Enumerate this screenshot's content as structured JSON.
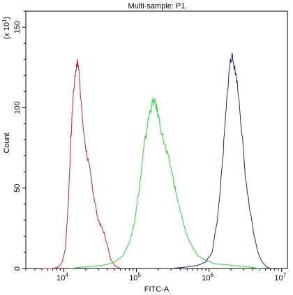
{
  "chart_data": {
    "type": "line",
    "title": "Multi-sample: P1",
    "xlabel": "FITC-A",
    "ylabel": "Count",
    "y_multiplier_label": "(x 10",
    "y_multiplier_exp": "1",
    "y_multiplier_close": ")",
    "x_scale": "log",
    "xlim": [
      3000,
      12000000
    ],
    "ylim": [
      0,
      160
    ],
    "y_ticks": [
      0,
      50,
      100,
      150
    ],
    "x_ticks": [
      {
        "value": 10000,
        "base": "10",
        "exp": "4"
      },
      {
        "value": 100000,
        "base": "10",
        "exp": "5"
      },
      {
        "value": 1000000,
        "base": "10",
        "exp": "6"
      },
      {
        "value": 10000000,
        "base": "10",
        "exp": "7"
      }
    ],
    "grid": false,
    "legend": "none",
    "series": [
      {
        "color": "#cc2222",
        "points": [
          [
            5000,
            0
          ],
          [
            7000,
            0
          ],
          [
            8500,
            1
          ],
          [
            9500,
            4
          ],
          [
            10500,
            12
          ],
          [
            11500,
            40
          ],
          [
            12500,
            80
          ],
          [
            13500,
            108
          ],
          [
            14500,
            122
          ],
          [
            15200,
            128
          ],
          [
            15800,
            127
          ],
          [
            16500,
            118
          ],
          [
            17500,
            100
          ],
          [
            19000,
            82
          ],
          [
            21000,
            70
          ],
          [
            23000,
            60
          ],
          [
            26000,
            45
          ],
          [
            29000,
            32
          ],
          [
            32000,
            27
          ],
          [
            36000,
            22
          ],
          [
            40000,
            14
          ],
          [
            44000,
            6
          ],
          [
            50000,
            2
          ],
          [
            60000,
            0
          ]
        ]
      },
      {
        "color": "#22dd22",
        "points": [
          [
            12000,
            0
          ],
          [
            20000,
            1
          ],
          [
            35000,
            2
          ],
          [
            50000,
            4
          ],
          [
            65000,
            8
          ],
          [
            80000,
            16
          ],
          [
            95000,
            30
          ],
          [
            110000,
            50
          ],
          [
            125000,
            72
          ],
          [
            140000,
            88
          ],
          [
            155000,
            98
          ],
          [
            170000,
            104
          ],
          [
            185000,
            102
          ],
          [
            200000,
            95
          ],
          [
            230000,
            82
          ],
          [
            260000,
            72
          ],
          [
            300000,
            62
          ],
          [
            340000,
            50
          ],
          [
            400000,
            36
          ],
          [
            480000,
            22
          ],
          [
            580000,
            14
          ],
          [
            700000,
            8
          ],
          [
            900000,
            5
          ],
          [
            1200000,
            3
          ],
          [
            2000000,
            2
          ],
          [
            3500000,
            1
          ],
          [
            5000000,
            0
          ]
        ]
      },
      {
        "color": "#22228a",
        "points": [
          [
            300000,
            0
          ],
          [
            500000,
            1
          ],
          [
            700000,
            2
          ],
          [
            900000,
            4
          ],
          [
            1100000,
            10
          ],
          [
            1300000,
            30
          ],
          [
            1500000,
            60
          ],
          [
            1700000,
            95
          ],
          [
            1850000,
            118
          ],
          [
            1950000,
            128
          ],
          [
            2050000,
            132
          ],
          [
            2200000,
            127
          ],
          [
            2400000,
            118
          ],
          [
            2650000,
            100
          ],
          [
            2900000,
            78
          ],
          [
            3200000,
            55
          ],
          [
            3600000,
            38
          ],
          [
            4100000,
            22
          ],
          [
            4700000,
            10
          ],
          [
            5400000,
            4
          ],
          [
            6200000,
            1
          ],
          [
            7000000,
            0
          ]
        ]
      }
    ]
  }
}
